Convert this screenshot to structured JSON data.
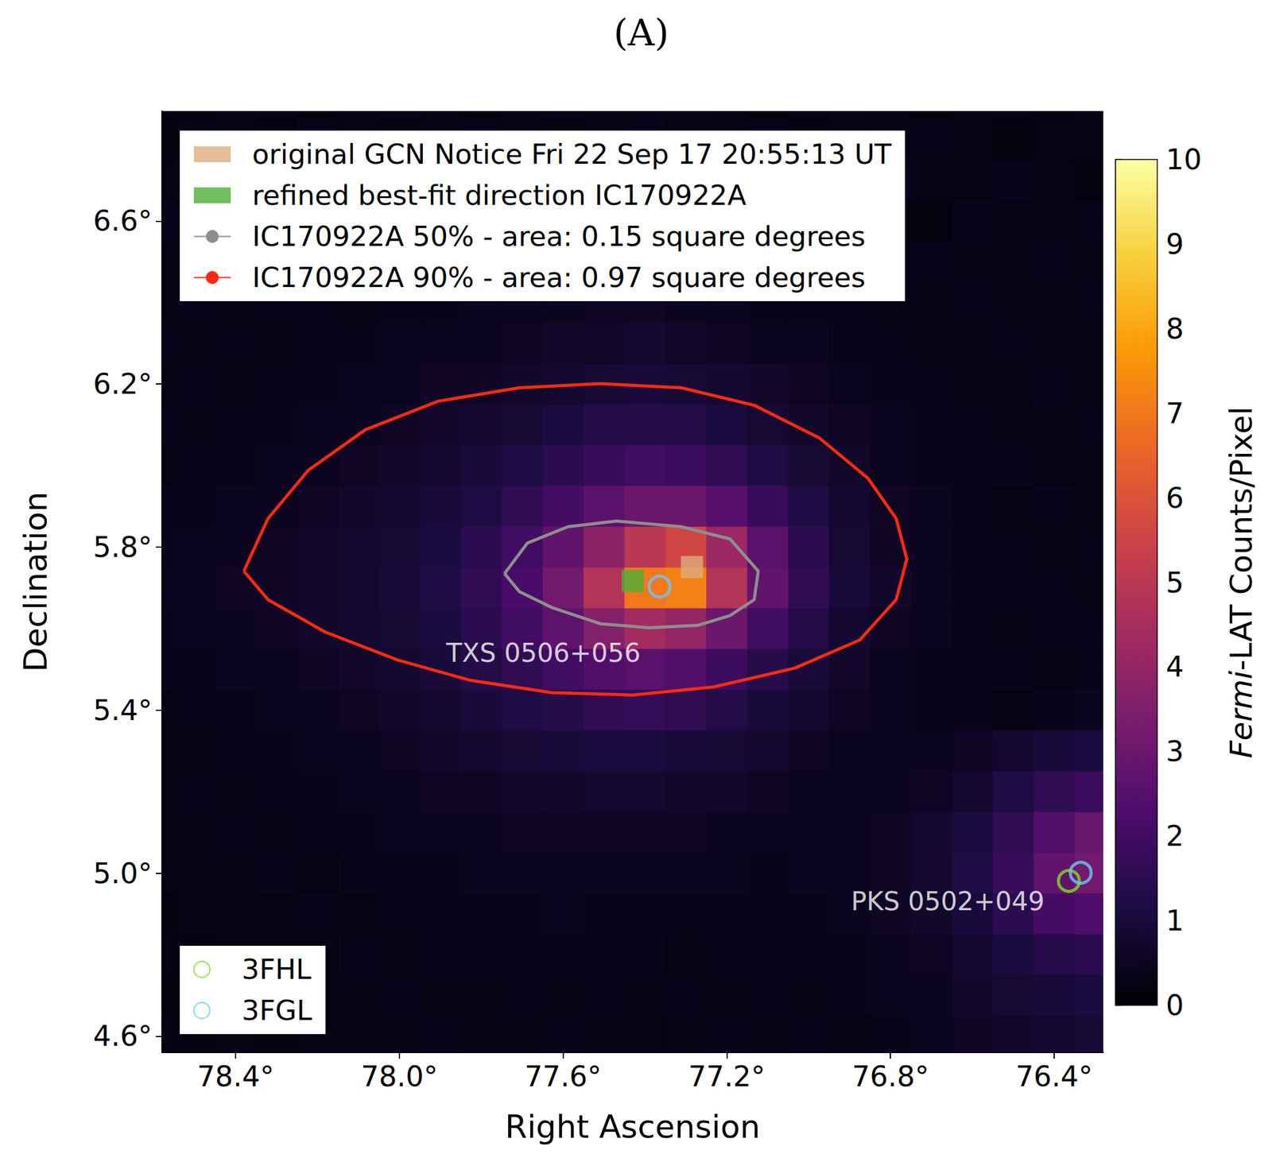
{
  "chart_data": {
    "type": "heatmap",
    "title": "(A)",
    "x_label": "Right Ascension",
    "y_label": "Declination",
    "xlim": [
      78.58,
      76.28
    ],
    "ylim": [
      4.56,
      6.87
    ],
    "xticks": [
      {
        "value": 78.4,
        "label": "78.4°"
      },
      {
        "value": 78.0,
        "label": "78.0°"
      },
      {
        "value": 77.6,
        "label": "77.6°"
      },
      {
        "value": 77.2,
        "label": "77.2°"
      },
      {
        "value": 76.8,
        "label": "76.8°"
      },
      {
        "value": 76.4,
        "label": "76.4°"
      }
    ],
    "yticks": [
      {
        "value": 4.6,
        "label": "4.6°"
      },
      {
        "value": 5.0,
        "label": "5.0°"
      },
      {
        "value": 5.4,
        "label": "5.4°"
      },
      {
        "value": 5.8,
        "label": "5.8°"
      },
      {
        "value": 6.2,
        "label": "6.2°"
      },
      {
        "value": 6.6,
        "label": "6.6°"
      }
    ],
    "legend": "upper left",
    "heatmap": {
      "colorbar_label": "Fermi-LAT Counts/Pixel",
      "colorbar_range": [
        0,
        10
      ],
      "colorbar_ticks": [
        0,
        1,
        2,
        3,
        4,
        5,
        6,
        7,
        8,
        9,
        10
      ],
      "ra": [
        78.6,
        78.5,
        78.4,
        78.3,
        78.2,
        78.1,
        78.0,
        77.9,
        77.8,
        77.7,
        77.6,
        77.5,
        77.4,
        77.3,
        77.2,
        77.1,
        77.0,
        76.9,
        76.8,
        76.7,
        76.6,
        76.5,
        76.4,
        76.3
      ],
      "dec": [
        6.9,
        6.8,
        6.7,
        6.6,
        6.5,
        6.4,
        6.3,
        6.2,
        6.1,
        6.0,
        5.9,
        5.8,
        5.7,
        5.6,
        5.5,
        5.4,
        5.3,
        5.2,
        5.1,
        5.0,
        4.9,
        4.8,
        4.7,
        4.6
      ],
      "counts": [
        [
          0.3,
          0.2,
          0.4,
          0.3,
          0.2,
          0.3,
          0.4,
          0.3,
          0.2,
          0.3,
          0.4,
          0.3,
          0.3,
          0.4,
          0.3,
          0.2,
          0.3,
          0.4,
          0.3,
          0.2,
          0.3,
          0.3,
          0.2,
          0.3
        ],
        [
          0.2,
          0.3,
          0.3,
          0.2,
          0.4,
          0.3,
          0.2,
          0.3,
          0.4,
          0.3,
          0.2,
          0.3,
          0.4,
          0.3,
          0.3,
          0.4,
          0.2,
          0.3,
          0.3,
          0.4,
          0.3,
          0.2,
          0.3,
          0.3
        ],
        [
          0.3,
          0.4,
          0.2,
          0.3,
          0.3,
          0.4,
          0.3,
          0.2,
          0.3,
          0.4,
          0.3,
          0.4,
          0.3,
          0.2,
          0.4,
          0.3,
          0.3,
          0.2,
          0.4,
          0.3,
          0.3,
          0.4,
          0.3,
          0.2
        ],
        [
          0.4,
          0.3,
          0.3,
          0.4,
          0.2,
          0.3,
          0.3,
          0.4,
          0.3,
          0.3,
          0.5,
          0.4,
          0.4,
          0.3,
          0.3,
          0.4,
          0.3,
          0.4,
          0.3,
          0.2,
          0.4,
          0.3,
          0.3,
          0.4
        ],
        [
          0.3,
          0.3,
          0.4,
          0.3,
          0.3,
          0.4,
          0.5,
          0.3,
          0.4,
          0.4,
          0.4,
          0.5,
          0.5,
          0.4,
          0.4,
          0.3,
          0.4,
          0.3,
          0.3,
          0.4,
          0.3,
          0.3,
          0.4,
          0.3
        ],
        [
          0.3,
          0.4,
          0.3,
          0.4,
          0.4,
          0.3,
          0.4,
          0.4,
          0.5,
          0.5,
          0.5,
          0.6,
          0.6,
          0.5,
          0.5,
          0.4,
          0.4,
          0.4,
          0.3,
          0.3,
          0.4,
          0.3,
          0.3,
          0.4
        ],
        [
          0.4,
          0.3,
          0.4,
          0.3,
          0.4,
          0.4,
          0.5,
          0.5,
          0.5,
          0.6,
          0.7,
          0.7,
          0.8,
          0.7,
          0.6,
          0.5,
          0.5,
          0.4,
          0.4,
          0.3,
          0.3,
          0.4,
          0.3,
          0.3
        ],
        [
          0.3,
          0.4,
          0.3,
          0.4,
          0.4,
          0.5,
          0.5,
          0.6,
          0.6,
          0.7,
          0.8,
          0.9,
          1.0,
          0.9,
          0.8,
          0.7,
          0.6,
          0.5,
          0.4,
          0.4,
          0.3,
          0.3,
          0.4,
          0.3
        ],
        [
          0.4,
          0.3,
          0.4,
          0.4,
          0.5,
          0.5,
          0.6,
          0.7,
          0.8,
          0.9,
          1.1,
          1.3,
          1.4,
          1.3,
          1.1,
          0.9,
          0.7,
          0.6,
          0.5,
          0.4,
          0.4,
          0.3,
          0.3,
          0.4
        ],
        [
          0.3,
          0.4,
          0.4,
          0.5,
          0.5,
          0.6,
          0.7,
          0.8,
          1.0,
          1.2,
          1.5,
          1.8,
          2.0,
          1.9,
          1.6,
          1.2,
          0.9,
          0.7,
          0.5,
          0.4,
          0.4,
          0.4,
          0.3,
          0.3
        ],
        [
          0.4,
          0.4,
          0.5,
          0.5,
          0.6,
          0.7,
          0.8,
          1.0,
          1.2,
          1.6,
          2.1,
          2.6,
          3.0,
          3.0,
          2.5,
          1.8,
          1.2,
          0.8,
          0.6,
          0.5,
          0.4,
          0.3,
          0.4,
          0.3
        ],
        [
          0.4,
          0.5,
          0.5,
          0.6,
          0.7,
          0.8,
          0.9,
          1.1,
          1.5,
          2.0,
          2.8,
          3.8,
          5.0,
          5.6,
          4.2,
          2.6,
          1.5,
          0.9,
          0.6,
          0.5,
          0.4,
          0.4,
          0.3,
          0.4
        ],
        [
          0.5,
          0.5,
          0.6,
          0.6,
          0.7,
          0.8,
          1.0,
          1.2,
          1.6,
          2.2,
          3.2,
          4.8,
          7.0,
          7.2,
          4.8,
          2.8,
          1.6,
          1.0,
          0.7,
          0.5,
          0.4,
          0.4,
          0.4,
          0.3
        ],
        [
          0.4,
          0.5,
          0.5,
          0.6,
          0.7,
          0.8,
          0.9,
          1.1,
          1.5,
          2.0,
          2.7,
          3.6,
          4.4,
          4.0,
          3.0,
          2.0,
          1.3,
          0.8,
          0.6,
          0.5,
          0.4,
          0.3,
          0.4,
          0.4
        ],
        [
          0.4,
          0.4,
          0.5,
          0.5,
          0.6,
          0.7,
          0.8,
          1.0,
          1.3,
          1.6,
          2.0,
          2.4,
          2.6,
          2.4,
          1.9,
          1.4,
          1.0,
          0.7,
          0.5,
          0.4,
          0.4,
          0.4,
          0.3,
          0.4
        ],
        [
          0.3,
          0.4,
          0.4,
          0.5,
          0.5,
          0.6,
          0.7,
          0.8,
          1.0,
          1.2,
          1.4,
          1.6,
          1.7,
          1.6,
          1.3,
          1.0,
          0.8,
          0.6,
          0.5,
          0.4,
          0.4,
          0.3,
          0.4,
          0.5
        ],
        [
          0.3,
          0.3,
          0.4,
          0.4,
          0.5,
          0.5,
          0.6,
          0.7,
          0.8,
          0.9,
          1.0,
          1.1,
          1.1,
          1.0,
          0.9,
          0.8,
          0.6,
          0.5,
          0.5,
          0.5,
          0.6,
          0.8,
          1.0,
          1.1
        ],
        [
          0.3,
          0.4,
          0.3,
          0.4,
          0.4,
          0.5,
          0.5,
          0.6,
          0.6,
          0.7,
          0.7,
          0.8,
          0.8,
          0.7,
          0.7,
          0.6,
          0.5,
          0.5,
          0.5,
          0.6,
          0.8,
          1.2,
          1.6,
          1.9
        ],
        [
          0.3,
          0.3,
          0.4,
          0.3,
          0.4,
          0.4,
          0.5,
          0.5,
          0.5,
          0.6,
          0.6,
          0.6,
          0.6,
          0.6,
          0.5,
          0.5,
          0.5,
          0.5,
          0.6,
          0.8,
          1.1,
          1.6,
          2.4,
          2.9
        ],
        [
          0.3,
          0.3,
          0.3,
          0.4,
          0.3,
          0.4,
          0.4,
          0.4,
          0.5,
          0.5,
          0.5,
          0.5,
          0.5,
          0.5,
          0.5,
          0.4,
          0.5,
          0.5,
          0.6,
          0.8,
          1.2,
          1.8,
          2.8,
          3.2
        ],
        [
          0.2,
          0.3,
          0.3,
          0.3,
          0.4,
          0.3,
          0.4,
          0.4,
          0.4,
          0.4,
          0.5,
          0.4,
          0.4,
          0.4,
          0.4,
          0.4,
          0.4,
          0.5,
          0.6,
          0.7,
          1.0,
          1.5,
          2.1,
          2.3
        ],
        [
          0.3,
          0.2,
          0.3,
          0.3,
          0.3,
          0.4,
          0.3,
          0.4,
          0.4,
          0.4,
          0.4,
          0.4,
          0.4,
          0.3,
          0.4,
          0.4,
          0.4,
          0.4,
          0.5,
          0.6,
          0.8,
          1.1,
          1.4,
          1.5
        ],
        [
          0.2,
          0.3,
          0.2,
          0.3,
          0.3,
          0.3,
          0.4,
          0.3,
          0.3,
          0.4,
          0.3,
          0.4,
          0.3,
          0.4,
          0.3,
          0.4,
          0.3,
          0.4,
          0.5,
          0.5,
          0.7,
          0.9,
          1.0,
          1.1
        ],
        [
          0.3,
          0.2,
          0.3,
          0.2,
          0.3,
          0.3,
          0.3,
          0.4,
          0.3,
          0.3,
          0.4,
          0.3,
          0.3,
          0.3,
          0.4,
          0.3,
          0.4,
          0.3,
          0.4,
          0.5,
          0.6,
          0.7,
          0.8,
          0.9
        ]
      ]
    },
    "series": [
      {
        "name": "original GCN Notice Fri 22 Sep 17 20:55:13 UT",
        "type": "scatter",
        "marker": "square",
        "color": "#dcae7e",
        "x": [
          77.285
        ],
        "y": [
          5.751
        ]
      },
      {
        "name": "refined best-fit direction IC170922A",
        "type": "scatter",
        "marker": "square",
        "color": "#4cae34",
        "x": [
          77.43
        ],
        "y": [
          5.717
        ]
      },
      {
        "name": "IC170922A 50% - area: 0.15 square degrees",
        "type": "line",
        "line_style": "solid",
        "color": "#8e8e8e",
        "x": [
          77.743,
          77.687,
          77.588,
          77.469,
          77.311,
          77.192,
          77.123,
          77.133,
          77.192,
          77.271,
          77.39,
          77.509,
          77.628,
          77.707,
          77.743
        ],
        "y": [
          5.735,
          5.81,
          5.85,
          5.864,
          5.85,
          5.82,
          5.741,
          5.671,
          5.632,
          5.608,
          5.602,
          5.612,
          5.652,
          5.691,
          5.735
        ]
      },
      {
        "name": "IC170922A 90% - area: 0.97 square degrees",
        "type": "line",
        "line_style": "solid",
        "color": "#ff2a10",
        "x": [
          78.38,
          78.321,
          78.222,
          78.083,
          77.905,
          77.707,
          77.509,
          77.311,
          77.133,
          76.974,
          76.855,
          76.786,
          76.76,
          76.786,
          76.875,
          77.034,
          77.232,
          77.43,
          77.628,
          77.826,
          78.004,
          78.182,
          78.321,
          78.38
        ],
        "y": [
          5.741,
          5.87,
          5.989,
          6.088,
          6.158,
          6.191,
          6.201,
          6.191,
          6.148,
          6.068,
          5.969,
          5.87,
          5.771,
          5.671,
          5.572,
          5.503,
          5.457,
          5.437,
          5.443,
          5.473,
          5.523,
          5.592,
          5.671,
          5.741
        ]
      },
      {
        "name": "3FHL",
        "type": "scatter",
        "marker": "ring",
        "color": "#7fdc26",
        "legend": "lower left",
        "x": [
          76.364
        ],
        "y": [
          4.981
        ]
      },
      {
        "name": "3FGL",
        "type": "scatter",
        "marker": "ring",
        "color": "#6fc4f6",
        "legend": "lower left",
        "x": [
          77.364,
          76.335
        ],
        "y": [
          5.703,
          5.001
        ]
      }
    ],
    "annotations": [
      {
        "text": "TXS 0506+056",
        "x": 77.648,
        "y": 5.54
      },
      {
        "text": "PKS 0502+049",
        "x": 76.66,
        "y": 4.931
      }
    ]
  }
}
